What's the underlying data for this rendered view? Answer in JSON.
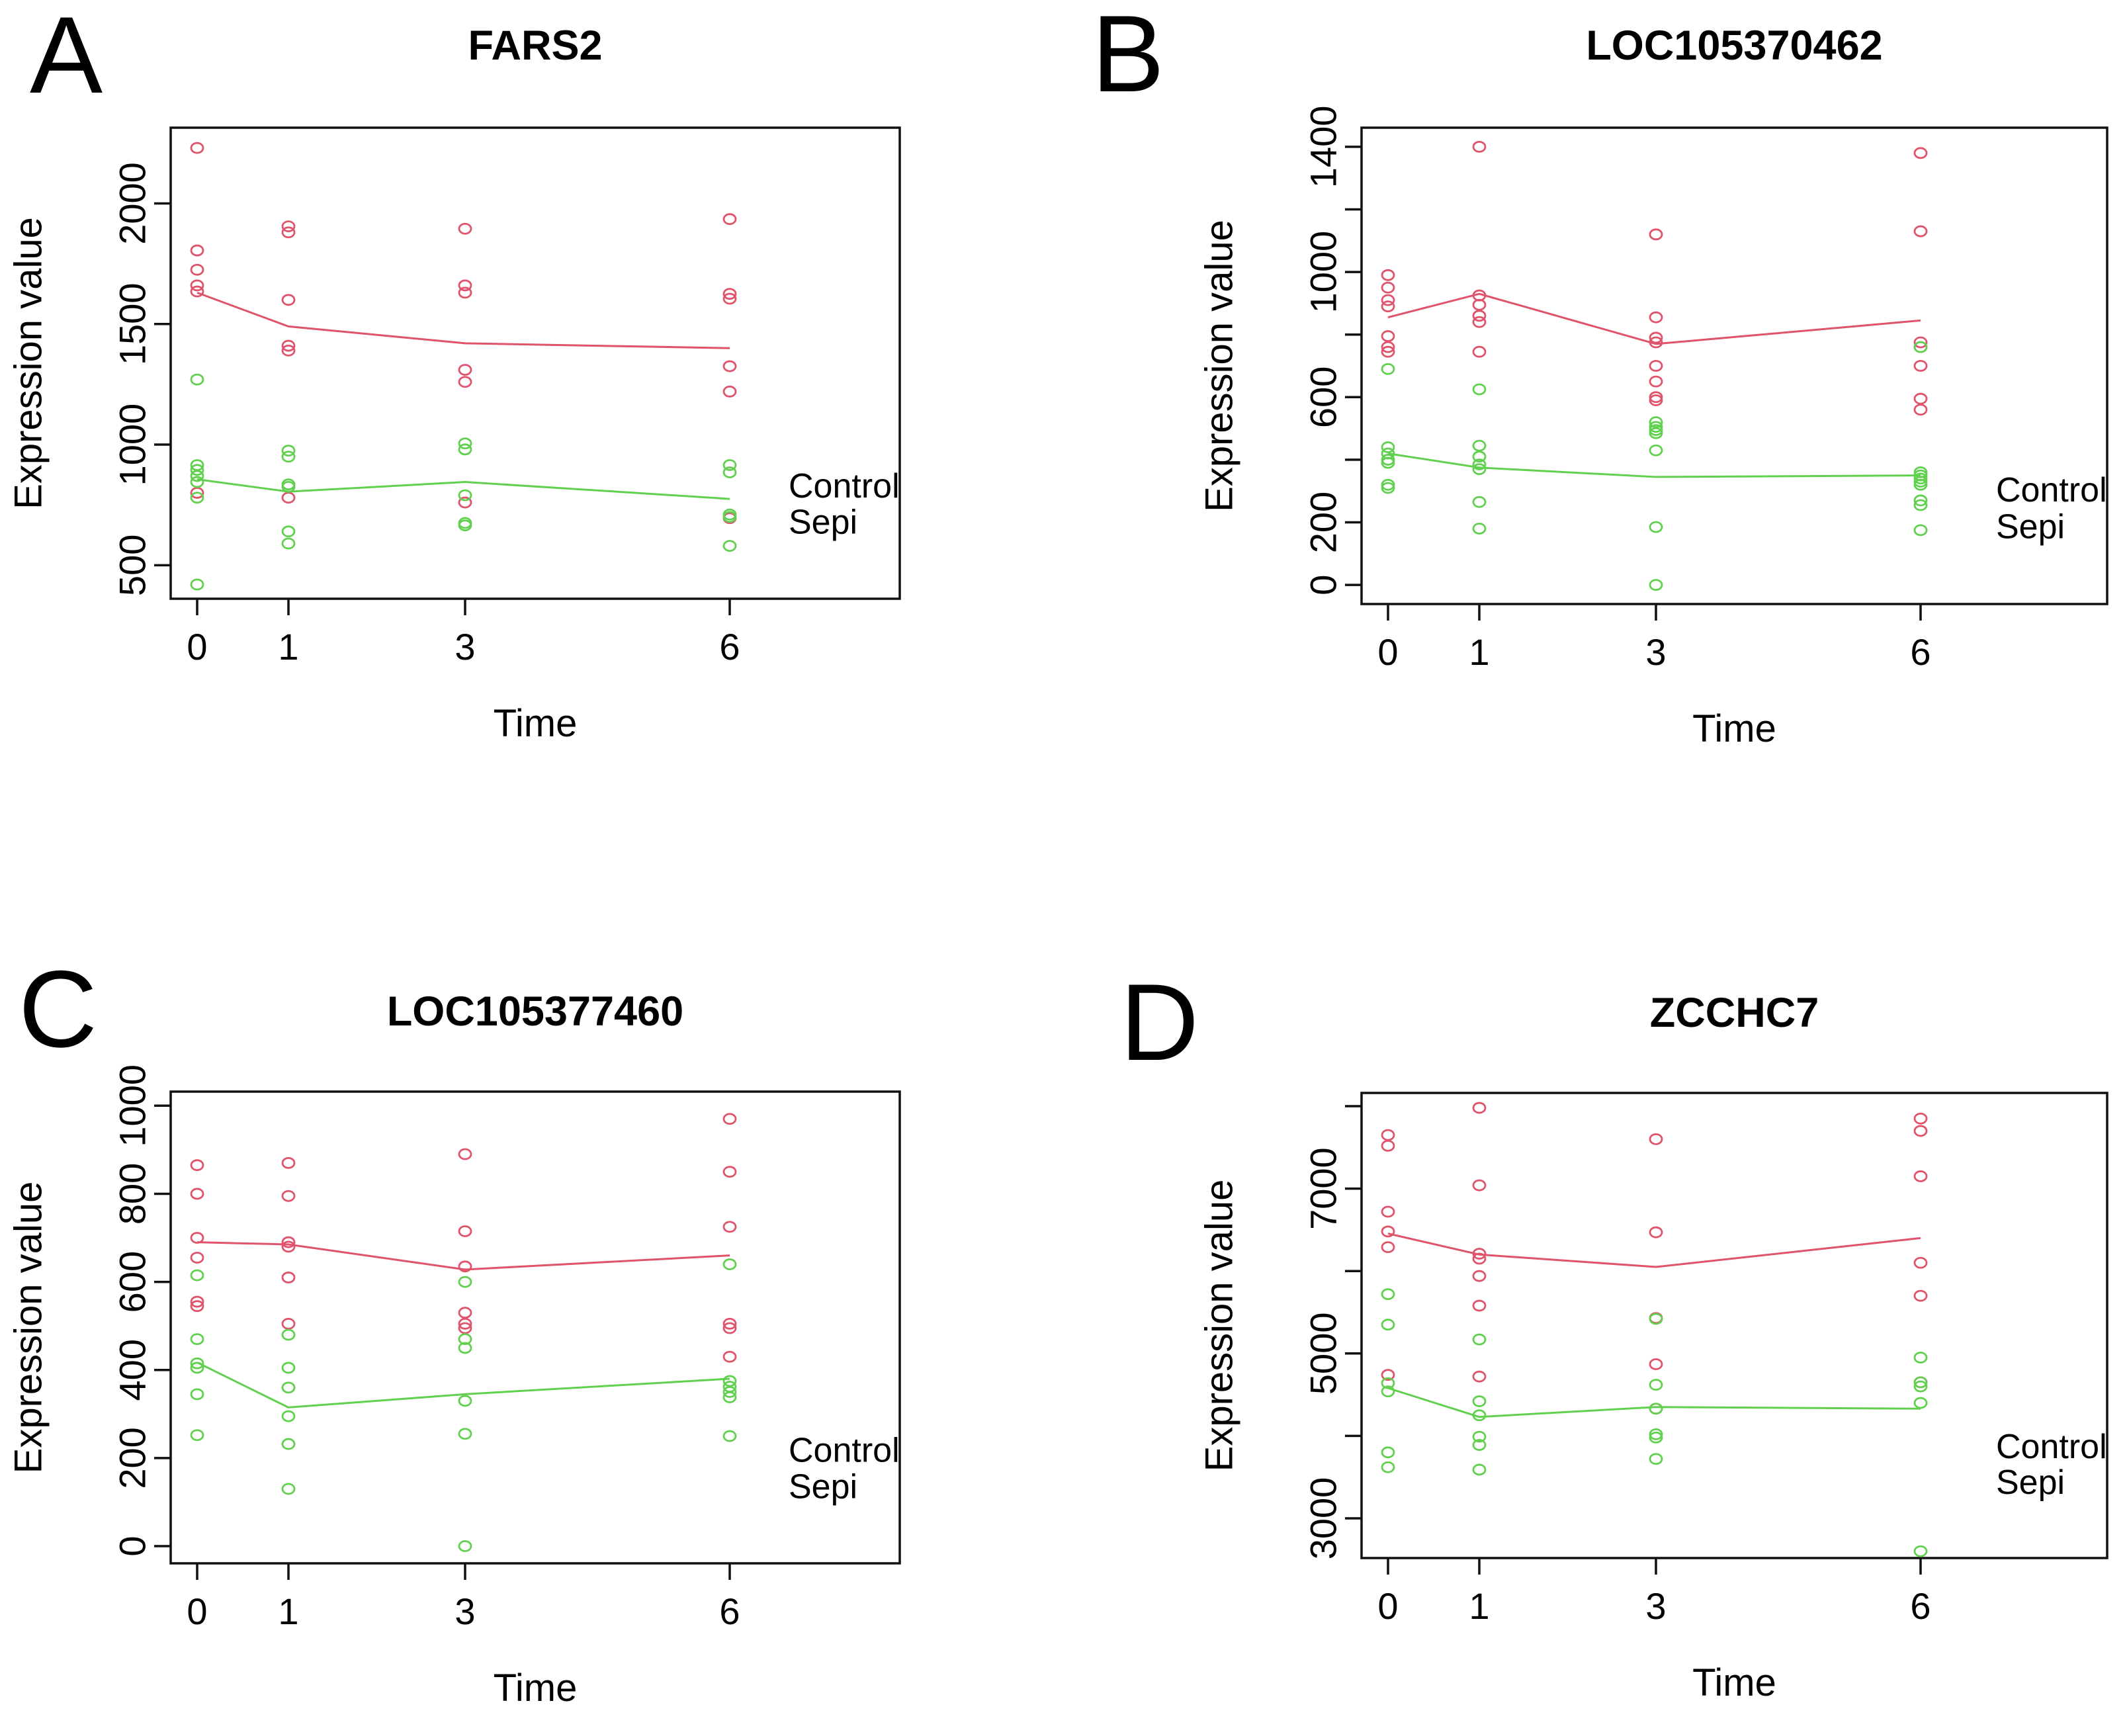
{
  "legend": {
    "control": "Control",
    "sepi": "Sepi"
  },
  "colors": {
    "control": "#DF536B",
    "sepi": "#61D04F",
    "axis": "#111111",
    "background": "#FFFFFF"
  },
  "chart_data": [
    {
      "type": "scatter",
      "panel_label": "A",
      "title": "FARS2",
      "xlabel": "Time",
      "ylabel": "Expression value",
      "x_categories": [
        "0",
        "1",
        "3",
        "6"
      ],
      "x_values": [
        0,
        1,
        3,
        6
      ],
      "ylim": [
        361,
        2314
      ],
      "grid": false,
      "legend_position": "inside-bottom-right",
      "yticks": [
        {
          "v": 500,
          "label": "500"
        },
        {
          "v": 1000,
          "label": "1000"
        },
        {
          "v": 1500,
          "label": "1500"
        },
        {
          "v": 2000,
          "label": "2000"
        }
      ],
      "series": [
        {
          "name": "Control",
          "color_key": "control",
          "points": [
            [
              0,
              2230
            ],
            [
              0,
              1805
            ],
            [
              0,
              1725
            ],
            [
              0,
              1660
            ],
            [
              0,
              1635
            ],
            [
              0,
              800
            ],
            [
              1,
              1905
            ],
            [
              1,
              1880
            ],
            [
              1,
              1600
            ],
            [
              1,
              1410
            ],
            [
              1,
              1390
            ],
            [
              1,
              780
            ],
            [
              3,
              1895
            ],
            [
              3,
              1660
            ],
            [
              3,
              1630
            ],
            [
              3,
              1310
            ],
            [
              3,
              1260
            ],
            [
              3,
              760
            ],
            [
              6,
              1935
            ],
            [
              6,
              1625
            ],
            [
              6,
              1605
            ],
            [
              6,
              1325
            ],
            [
              6,
              1220
            ],
            [
              6,
              695
            ]
          ],
          "mean_line": [
            1630,
            1490,
            1420,
            1400
          ]
        },
        {
          "name": "Sepi",
          "color_key": "sepi",
          "points": [
            [
              0,
              1270
            ],
            [
              0,
              915
            ],
            [
              0,
              895
            ],
            [
              0,
              870
            ],
            [
              0,
              845
            ],
            [
              0,
              780
            ],
            [
              0,
              420
            ],
            [
              1,
              975
            ],
            [
              1,
              950
            ],
            [
              1,
              835
            ],
            [
              1,
              825
            ],
            [
              1,
              640
            ],
            [
              1,
              590
            ],
            [
              3,
              1005
            ],
            [
              3,
              980
            ],
            [
              3,
              790
            ],
            [
              3,
              675
            ],
            [
              3,
              665
            ],
            [
              6,
              915
            ],
            [
              6,
              885
            ],
            [
              6,
              710
            ],
            [
              6,
              700
            ],
            [
              6,
              580
            ]
          ],
          "mean_line": [
            856,
            805,
            845,
            775
          ]
        }
      ]
    },
    {
      "type": "scatter",
      "panel_label": "B",
      "title": "LOC105370462",
      "xlabel": "Time",
      "ylabel": "Expression value",
      "x_categories": [
        "0",
        "1",
        "3",
        "6"
      ],
      "x_values": [
        0,
        1,
        3,
        6
      ],
      "ylim": [
        -61,
        1461
      ],
      "grid": false,
      "legend_position": "inside-bottom-right",
      "yticks": [
        {
          "v": 0,
          "label": "0"
        },
        {
          "v": 200,
          "label": "200"
        },
        {
          "v": 400,
          "label": ""
        },
        {
          "v": 600,
          "label": "600"
        },
        {
          "v": 800,
          "label": ""
        },
        {
          "v": 1000,
          "label": "1000"
        },
        {
          "v": 1200,
          "label": ""
        },
        {
          "v": 1400,
          "label": "1400"
        }
      ],
      "series": [
        {
          "name": "Control",
          "color_key": "control",
          "points": [
            [
              0,
              990
            ],
            [
              0,
              950
            ],
            [
              0,
              910
            ],
            [
              0,
              890
            ],
            [
              0,
              795
            ],
            [
              0,
              760
            ],
            [
              0,
              745
            ],
            [
              1,
              1400
            ],
            [
              1,
              925
            ],
            [
              1,
              895
            ],
            [
              1,
              860
            ],
            [
              1,
              840
            ],
            [
              1,
              745
            ],
            [
              3,
              1120
            ],
            [
              3,
              855
            ],
            [
              3,
              790
            ],
            [
              3,
              775
            ],
            [
              3,
              700
            ],
            [
              3,
              650
            ],
            [
              3,
              600
            ],
            [
              3,
              590
            ],
            [
              6,
              1380
            ],
            [
              6,
              1130
            ],
            [
              6,
              775
            ],
            [
              6,
              760
            ],
            [
              6,
              700
            ],
            [
              6,
              595
            ],
            [
              6,
              560
            ]
          ],
          "mean_line": [
            855,
            930,
            770,
            845
          ]
        },
        {
          "name": "Sepi",
          "color_key": "sepi",
          "points": [
            [
              0,
              690
            ],
            [
              0,
              440
            ],
            [
              0,
              420
            ],
            [
              0,
              400
            ],
            [
              0,
              390
            ],
            [
              0,
              320
            ],
            [
              0,
              310
            ],
            [
              1,
              625
            ],
            [
              1,
              445
            ],
            [
              1,
              410
            ],
            [
              1,
              385
            ],
            [
              1,
              370
            ],
            [
              1,
              265
            ],
            [
              1,
              180
            ],
            [
              3,
              520
            ],
            [
              3,
              505
            ],
            [
              3,
              495
            ],
            [
              3,
              485
            ],
            [
              3,
              430
            ],
            [
              3,
              185
            ],
            [
              3,
              0
            ],
            [
              6,
              760
            ],
            [
              6,
              360
            ],
            [
              6,
              350
            ],
            [
              6,
              340
            ],
            [
              6,
              330
            ],
            [
              6,
              320
            ],
            [
              6,
              270
            ],
            [
              6,
              255
            ],
            [
              6,
              175
            ]
          ],
          "mean_line": [
            420,
            375,
            345,
            350
          ]
        }
      ]
    },
    {
      "type": "scatter",
      "panel_label": "C",
      "title": "LOC105377460",
      "xlabel": "Time",
      "ylabel": "Expression value",
      "x_categories": [
        "0",
        "1",
        "3",
        "6"
      ],
      "x_values": [
        0,
        1,
        3,
        6
      ],
      "ylim": [
        -39,
        1032
      ],
      "grid": false,
      "legend_position": "inside-bottom-right",
      "yticks": [
        {
          "v": 0,
          "label": "0"
        },
        {
          "v": 200,
          "label": "200"
        },
        {
          "v": 400,
          "label": "400"
        },
        {
          "v": 600,
          "label": "600"
        },
        {
          "v": 800,
          "label": "800"
        },
        {
          "v": 1000,
          "label": "1000"
        }
      ],
      "series": [
        {
          "name": "Control",
          "color_key": "control",
          "points": [
            [
              0,
              865
            ],
            [
              0,
              800
            ],
            [
              0,
              700
            ],
            [
              0,
              655
            ],
            [
              0,
              555
            ],
            [
              0,
              545
            ],
            [
              1,
              870
            ],
            [
              1,
              795
            ],
            [
              1,
              690
            ],
            [
              1,
              680
            ],
            [
              1,
              610
            ],
            [
              1,
              505
            ],
            [
              3,
              890
            ],
            [
              3,
              715
            ],
            [
              3,
              635
            ],
            [
              3,
              530
            ],
            [
              3,
              505
            ],
            [
              3,
              495
            ],
            [
              6,
              970
            ],
            [
              6,
              850
            ],
            [
              6,
              725
            ],
            [
              6,
              505
            ],
            [
              6,
              495
            ],
            [
              6,
              430
            ]
          ],
          "mean_line": [
            690,
            685,
            628,
            660
          ]
        },
        {
          "name": "Sepi",
          "color_key": "sepi",
          "points": [
            [
              0,
              615
            ],
            [
              0,
              470
            ],
            [
              0,
              415
            ],
            [
              0,
              405
            ],
            [
              0,
              345
            ],
            [
              0,
              252
            ],
            [
              1,
              480
            ],
            [
              1,
              405
            ],
            [
              1,
              360
            ],
            [
              1,
              295
            ],
            [
              1,
              232
            ],
            [
              1,
              130
            ],
            [
              3,
              600
            ],
            [
              3,
              470
            ],
            [
              3,
              450
            ],
            [
              3,
              330
            ],
            [
              3,
              255
            ],
            [
              3,
              0
            ],
            [
              6,
              640
            ],
            [
              6,
              375
            ],
            [
              6,
              362
            ],
            [
              6,
              350
            ],
            [
              6,
              338
            ],
            [
              6,
              250
            ]
          ],
          "mean_line": [
            417,
            315,
            345,
            380
          ]
        }
      ]
    },
    {
      "type": "scatter",
      "panel_label": "D",
      "title": "ZCCHC7",
      "xlabel": "Time",
      "ylabel": "Expression value",
      "x_categories": [
        "0",
        "1",
        "3",
        "6"
      ],
      "x_values": [
        0,
        1,
        3,
        6
      ],
      "ylim": [
        2518,
        8161
      ],
      "grid": false,
      "legend_position": "inside-bottom-right",
      "yticks": [
        {
          "v": 3000,
          "label": "3000"
        },
        {
          "v": 4000,
          "label": ""
        },
        {
          "v": 5000,
          "label": "5000"
        },
        {
          "v": 6000,
          "label": ""
        },
        {
          "v": 7000,
          "label": "7000"
        },
        {
          "v": 8000,
          "label": ""
        }
      ],
      "series": [
        {
          "name": "Control",
          "color_key": "control",
          "points": [
            [
              0,
              7650
            ],
            [
              0,
              7520
            ],
            [
              0,
              6720
            ],
            [
              0,
              6480
            ],
            [
              0,
              6290
            ],
            [
              0,
              4740
            ],
            [
              1,
              7980
            ],
            [
              1,
              7040
            ],
            [
              1,
              6210
            ],
            [
              1,
              6150
            ],
            [
              1,
              5940
            ],
            [
              1,
              5580
            ],
            [
              1,
              4720
            ],
            [
              3,
              7600
            ],
            [
              3,
              6470
            ],
            [
              3,
              5430
            ],
            [
              3,
              4870
            ],
            [
              3,
              4330
            ],
            [
              6,
              7850
            ],
            [
              6,
              7700
            ],
            [
              6,
              7150
            ],
            [
              6,
              6100
            ],
            [
              6,
              5700
            ],
            [
              6,
              4650
            ]
          ],
          "mean_line": [
            6455,
            6200,
            6050,
            6400
          ]
        },
        {
          "name": "Sepi",
          "color_key": "sepi",
          "points": [
            [
              0,
              5720
            ],
            [
              0,
              5350
            ],
            [
              0,
              4640
            ],
            [
              0,
              4540
            ],
            [
              0,
              3800
            ],
            [
              0,
              3620
            ],
            [
              1,
              5170
            ],
            [
              1,
              4420
            ],
            [
              1,
              4250
            ],
            [
              1,
              3990
            ],
            [
              1,
              3890
            ],
            [
              1,
              3590
            ],
            [
              3,
              5420
            ],
            [
              3,
              4620
            ],
            [
              3,
              4330
            ],
            [
              3,
              4020
            ],
            [
              3,
              3980
            ],
            [
              3,
              3720
            ],
            [
              6,
              4950
            ],
            [
              6,
              4650
            ],
            [
              6,
              4600
            ],
            [
              6,
              4400
            ],
            [
              6,
              2600
            ]
          ],
          "mean_line": [
            4580,
            4230,
            4350,
            4330
          ]
        }
      ]
    }
  ]
}
